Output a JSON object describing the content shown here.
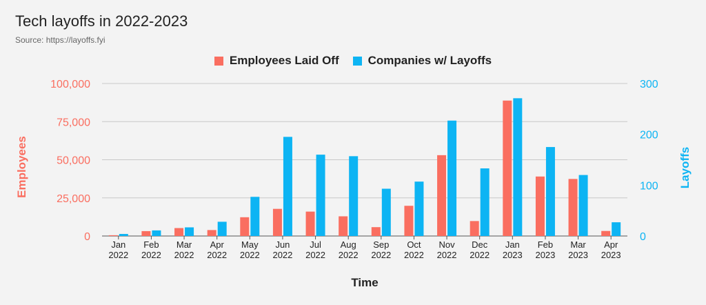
{
  "title": "Tech layoffs in 2022-2023",
  "subtitle": "Source: https://layoffs.fyi",
  "colors": {
    "employees": "#fa6e60",
    "companies": "#0db4f3",
    "grid": "#c8c8c8"
  },
  "chart_data": {
    "type": "bar",
    "title": "Tech layoffs in 2022-2023",
    "xlabel": "Time",
    "ylabel": "Employees",
    "y2label": "Layoffs",
    "ylim": [
      0,
      100000
    ],
    "y2lim": [
      0,
      300
    ],
    "yticks": [
      "0",
      "25,000",
      "50,000",
      "75,000",
      "100,000"
    ],
    "y2ticks": [
      "0",
      "100",
      "200",
      "300"
    ],
    "grid": true,
    "legend": "top-center",
    "categories": [
      [
        "Jan",
        "2022"
      ],
      [
        "Feb",
        "2022"
      ],
      [
        "Mar",
        "2022"
      ],
      [
        "Apr",
        "2022"
      ],
      [
        "May",
        "2022"
      ],
      [
        "Jun",
        "2022"
      ],
      [
        "Jul",
        "2022"
      ],
      [
        "Aug",
        "2022"
      ],
      [
        "Sep",
        "2022"
      ],
      [
        "Oct",
        "2022"
      ],
      [
        "Nov",
        "2022"
      ],
      [
        "Dec",
        "2022"
      ],
      [
        "Jan",
        "2023"
      ],
      [
        "Feb",
        "2023"
      ],
      [
        "Mar",
        "2023"
      ],
      [
        "Apr",
        "2023"
      ]
    ],
    "series": [
      {
        "name": "Employees Laid Off",
        "axis": "left",
        "values": [
          500,
          3200,
          5200,
          3900,
          12300,
          17800,
          16000,
          12900,
          5800,
          19800,
          53000,
          9800,
          88800,
          39000,
          37400,
          3300
        ]
      },
      {
        "name": "Companies w/ Layoffs",
        "axis": "right",
        "values": [
          4,
          11,
          17,
          28,
          77,
          195,
          160,
          157,
          93,
          107,
          227,
          133,
          271,
          175,
          120,
          27
        ]
      }
    ]
  }
}
